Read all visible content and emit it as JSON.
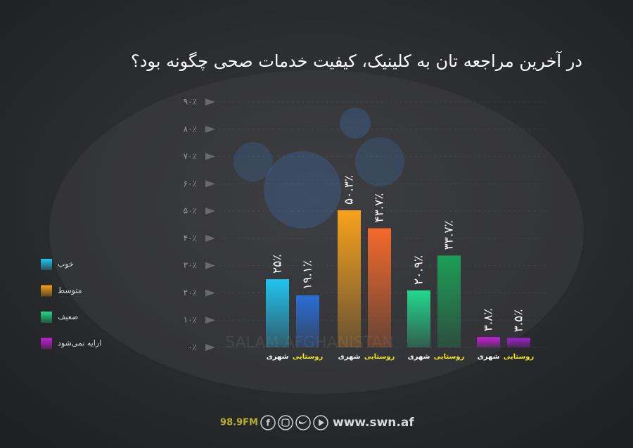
{
  "chart_data": {
    "type": "bar",
    "title": "در آخرین مراجعه تان به کلینیک، کیفیت خدمات صحی چگونه بود؟",
    "categories": [
      "خوب",
      "متوسط",
      "ضعیف",
      "ارایه نمی‌شود"
    ],
    "series": [
      {
        "name": "شهری",
        "colors": [
          "#20c6f2",
          "#f9a11b",
          "#22d98e",
          "#c620d9"
        ],
        "values": [
          25,
          50.3,
          20.9,
          3.8
        ],
        "value_labels": [
          "۲۵٪",
          "۵۰.۳٪",
          "۲۰.۹٪",
          "۳.۸٪"
        ]
      },
      {
        "name": "روستایی",
        "colors": [
          "#2b6ed8",
          "#f4692b",
          "#1b9e55",
          "#a220cc"
        ],
        "values": [
          19.1,
          43.7,
          33.7,
          3.5
        ],
        "value_labels": [
          "۱۹.۱٪",
          "۴۳.۷٪",
          "۳۳.۷٪",
          "۳.۵٪"
        ]
      }
    ],
    "ylim": [
      0,
      90
    ],
    "yticks": [
      {
        "value": 0,
        "label": "۰٪"
      },
      {
        "value": 10,
        "label": "۱۰٪"
      },
      {
        "value": 20,
        "label": "۲۰٪"
      },
      {
        "value": 30,
        "label": "۳۰٪"
      },
      {
        "value": 40,
        "label": "۴۰٪"
      },
      {
        "value": 50,
        "label": "۵۰٪"
      },
      {
        "value": 60,
        "label": "۶۰٪"
      },
      {
        "value": 70,
        "label": "۷۰٪"
      },
      {
        "value": 80,
        "label": "۸۰٪"
      },
      {
        "value": 90,
        "label": "۹۰٪"
      }
    ],
    "grid": true,
    "legend": "left",
    "watermark": "SALAM AFGHANISTAN",
    "footer": {
      "station": "98.9FM",
      "website": "www.swn.af"
    }
  }
}
